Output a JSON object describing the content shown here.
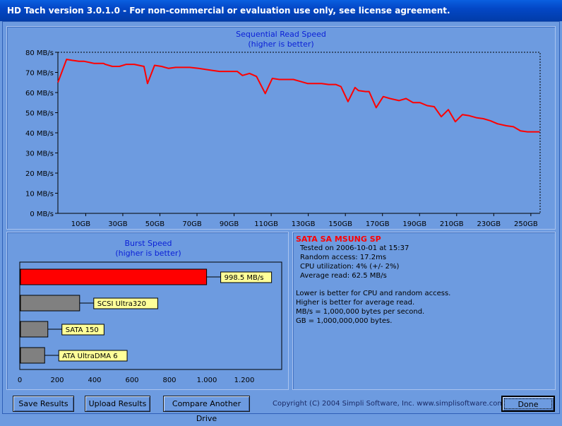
{
  "window": {
    "title": "HD Tach version 3.0.1.0  - For non-commercial or evaluation use only, see license agreement."
  },
  "chart_data": [
    {
      "type": "line",
      "title": "Sequential Read Speed",
      "subtitle": "(higher is better)",
      "xlabel": "",
      "ylabel": "",
      "ylim": [
        0,
        80
      ],
      "xlim": [
        0,
        260
      ],
      "yticks": [
        "0 MB/s",
        "10 MB/s",
        "20 MB/s",
        "30 MB/s",
        "40 MB/s",
        "50 MB/s",
        "60 MB/s",
        "70 MB/s",
        "80 MB/s"
      ],
      "xticks": [
        "10GB",
        "30GB",
        "50GB",
        "70GB",
        "90GB",
        "110GB",
        "130GB",
        "150GB",
        "170GB",
        "190GB",
        "210GB",
        "230GB",
        "250GB"
      ],
      "xtick_values": [
        15,
        35,
        55,
        75,
        95,
        115,
        135,
        155,
        175,
        195,
        215,
        235,
        255
      ],
      "line_color": "#ff0000",
      "series": [
        {
          "x": [
            0,
            4.7,
            7.6,
            11.4,
            14.2,
            19.4,
            24.6,
            25.6,
            29.4,
            33.2,
            36.9,
            38.6,
            41.2,
            46.4,
            48.3,
            52.1,
            55.9,
            59.7,
            63.5,
            67.3,
            71.1,
            75.8,
            79.6,
            83.4,
            87.2,
            91.0,
            94.8,
            96.7,
            99.5,
            103.3,
            107.1,
            111.8,
            115.6,
            119.4,
            123.2,
            127.0,
            130.8,
            134.6,
            138.4,
            142.2,
            146.0,
            149.8,
            152.6,
            156.4,
            160.2,
            162.1,
            165.9,
            167.8,
            171.6,
            175.4,
            179.1,
            183.9,
            187.7,
            191.5,
            195.3,
            199.1,
            202.9,
            206.7,
            210.5,
            214.3,
            218.1,
            221.8,
            225.6,
            229.4,
            233.2,
            237.0,
            241.8,
            245.6,
            249.4,
            253.2,
            257.0,
            259.8
          ],
          "y": [
            65,
            76.5,
            76,
            75.5,
            75.5,
            74.5,
            74.5,
            74,
            73,
            73,
            74,
            74,
            74,
            73,
            64.5,
            73.5,
            73,
            72,
            72.5,
            72.5,
            72.5,
            72,
            71.5,
            71,
            70.5,
            70.5,
            70.5,
            70.5,
            68.5,
            69.5,
            68,
            59.5,
            67,
            66.5,
            66.5,
            66.5,
            65.5,
            64.5,
            64.5,
            64.5,
            64,
            64,
            63,
            55.5,
            62.5,
            61,
            60.5,
            60.5,
            52.5,
            58,
            57,
            56,
            57,
            55,
            55,
            53.5,
            53,
            48,
            51.5,
            45.5,
            49,
            48.5,
            47.5,
            47,
            46,
            44.5,
            43.5,
            43,
            41,
            40.5,
            40.5,
            40.5
          ]
        }
      ]
    },
    {
      "type": "bar",
      "title": "Burst Speed",
      "subtitle": "(higher is better)",
      "xlabel": "",
      "ylabel": "",
      "xlim": [
        0,
        1400
      ],
      "xticks": [
        "0",
        "200",
        "400",
        "600",
        "800",
        "1.000",
        "1.200"
      ],
      "xtick_values": [
        0,
        200,
        400,
        600,
        800,
        1000,
        1200
      ],
      "bars": [
        {
          "value": 998.5,
          "label": "998.5 MB/s",
          "color": "#ff0000"
        },
        {
          "value": 320,
          "label": "SCSI Ultra320",
          "color": "#808080"
        },
        {
          "value": 150,
          "label": "SATA 150",
          "color": "#808080"
        },
        {
          "value": 133,
          "label": "ATA UltraDMA 6",
          "color": "#808080"
        }
      ]
    }
  ],
  "info": {
    "drive_name": "SATA SA MSUNG SP",
    "tested_on": "Tested on 2006-10-01 at 15:37",
    "random_access": "Random access: 17.2ms",
    "cpu": "CPU utilization: 4% (+/- 2%)",
    "average_read": "Average read: 62.5 MB/s",
    "note1": "Lower is better for CPU and random access.",
    "note2": "Higher is better for average read.",
    "note3": "MB/s = 1,000,000 bytes per second.",
    "note4": "GB = 1,000,000,000 bytes."
  },
  "buttons": {
    "save": "Save Results",
    "upload": "Upload Results",
    "compare": "Compare Another Drive",
    "done": "Done"
  },
  "copyright": "Copyright (C) 2004 Simpli Software, Inc. www.simplisoftware.com"
}
